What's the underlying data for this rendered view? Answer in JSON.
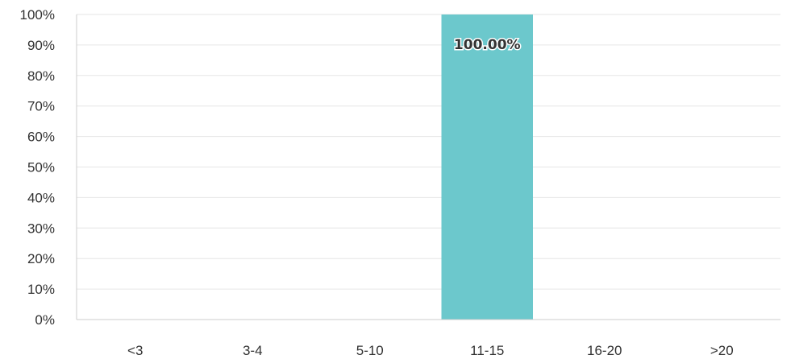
{
  "chart_data": {
    "type": "bar",
    "categories": [
      "<3",
      "3-4",
      "5-10",
      "11-15",
      "16-20",
      ">20"
    ],
    "values": [
      0,
      0,
      0,
      100,
      0,
      0
    ],
    "data_labels": [
      "",
      "",
      "",
      "100.00%",
      "",
      ""
    ],
    "yticks": [
      "0%",
      "10%",
      "20%",
      "30%",
      "40%",
      "50%",
      "60%",
      "70%",
      "80%",
      "90%",
      "100%"
    ],
    "ylim": [
      0,
      100
    ],
    "title": "",
    "xlabel": "",
    "ylabel": "",
    "grid": true,
    "bar_color": "#6CC8CC"
  }
}
